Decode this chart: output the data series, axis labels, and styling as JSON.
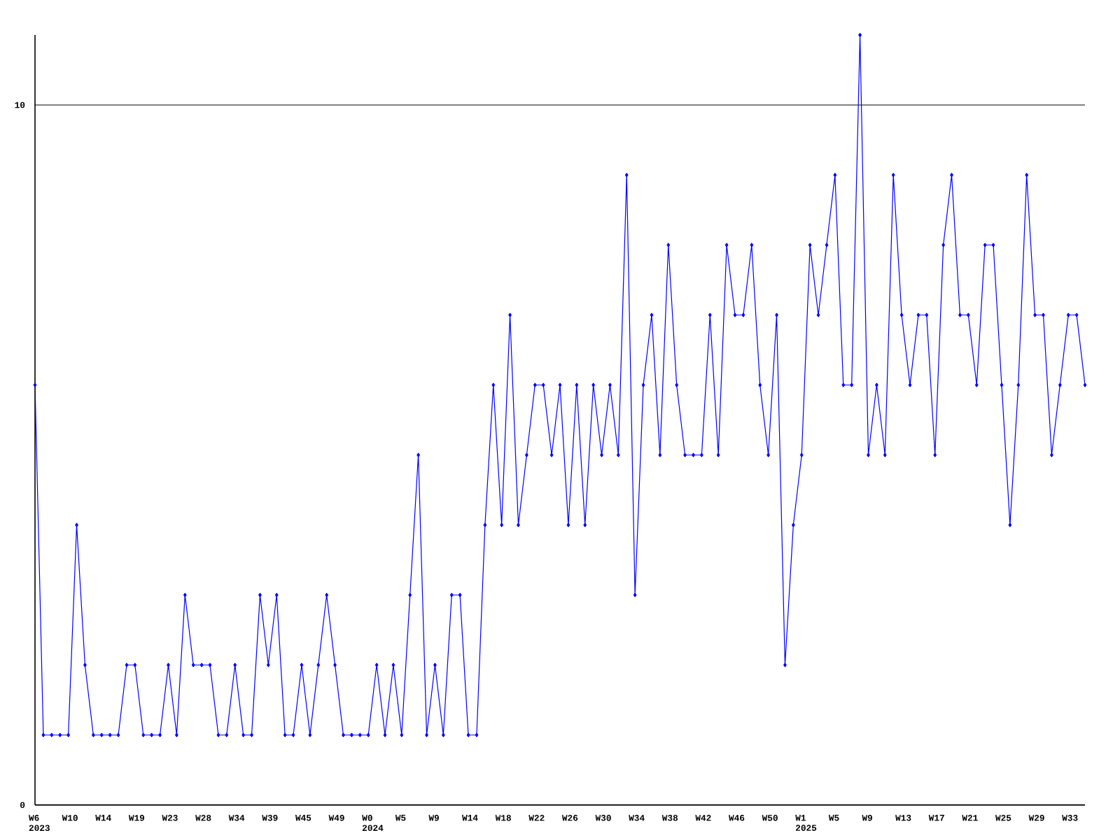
{
  "chart_data": {
    "type": "line",
    "categories": [
      "W6 2023",
      null,
      null,
      null,
      "W10",
      null,
      null,
      null,
      "W14",
      null,
      null,
      null,
      "W19",
      null,
      null,
      null,
      "W23",
      null,
      null,
      null,
      "W28",
      null,
      null,
      null,
      "W34",
      null,
      null,
      null,
      "W39",
      null,
      null,
      null,
      "W45",
      null,
      null,
      null,
      "W49",
      null,
      null,
      null,
      "W0 2024",
      null,
      null,
      null,
      "W5",
      null,
      null,
      null,
      "W9",
      null,
      null,
      null,
      "W14",
      null,
      null,
      null,
      "W18",
      null,
      null,
      null,
      "W22",
      null,
      null,
      null,
      "W26",
      null,
      null,
      null,
      "W30",
      null,
      null,
      null,
      "W34",
      null,
      null,
      null,
      "W38",
      null,
      null,
      null,
      "W42",
      null,
      null,
      null,
      "W46",
      null,
      null,
      null,
      "W50",
      null,
      null,
      null,
      "W1 2025",
      null,
      null,
      null,
      "W5",
      null,
      null,
      null,
      "W9",
      null,
      null,
      null,
      "W13",
      null,
      null,
      null,
      "W17",
      null,
      null,
      null,
      "W21",
      null,
      null,
      null,
      "W25",
      null,
      null,
      null,
      "W29",
      null,
      null,
      null,
      "W33",
      null,
      null
    ],
    "values": [
      6,
      1,
      1,
      1,
      1,
      4,
      2,
      1,
      1,
      1,
      1,
      2,
      2,
      1,
      1,
      1,
      2,
      1,
      3,
      2,
      2,
      2,
      1,
      1,
      2,
      1,
      1,
      3,
      2,
      3,
      1,
      1,
      2,
      1,
      2,
      3,
      2,
      1,
      1,
      1,
      1,
      2,
      1,
      2,
      1,
      3,
      5,
      1,
      2,
      1,
      3,
      3,
      1,
      1,
      4,
      6,
      4,
      7,
      4,
      5,
      6,
      6,
      5,
      6,
      4,
      6,
      4,
      6,
      5,
      6,
      5,
      9,
      3,
      6,
      7,
      5,
      8,
      6,
      5,
      5,
      5,
      7,
      5,
      8,
      7,
      7,
      8,
      6,
      5,
      7,
      2,
      4,
      5,
      8,
      7,
      8,
      9,
      6,
      6,
      11,
      5,
      6,
      5,
      9,
      7,
      6,
      7,
      7,
      5,
      8,
      9,
      7,
      7,
      6,
      8,
      8,
      6,
      4,
      6,
      9,
      7,
      7,
      5,
      6,
      7,
      7,
      6
    ],
    "color": "#0000ff",
    "ylim": [
      0,
      11
    ],
    "yticks": [
      0,
      10
    ],
    "grid": "y",
    "marker": "diamond",
    "line_style": "solid"
  }
}
